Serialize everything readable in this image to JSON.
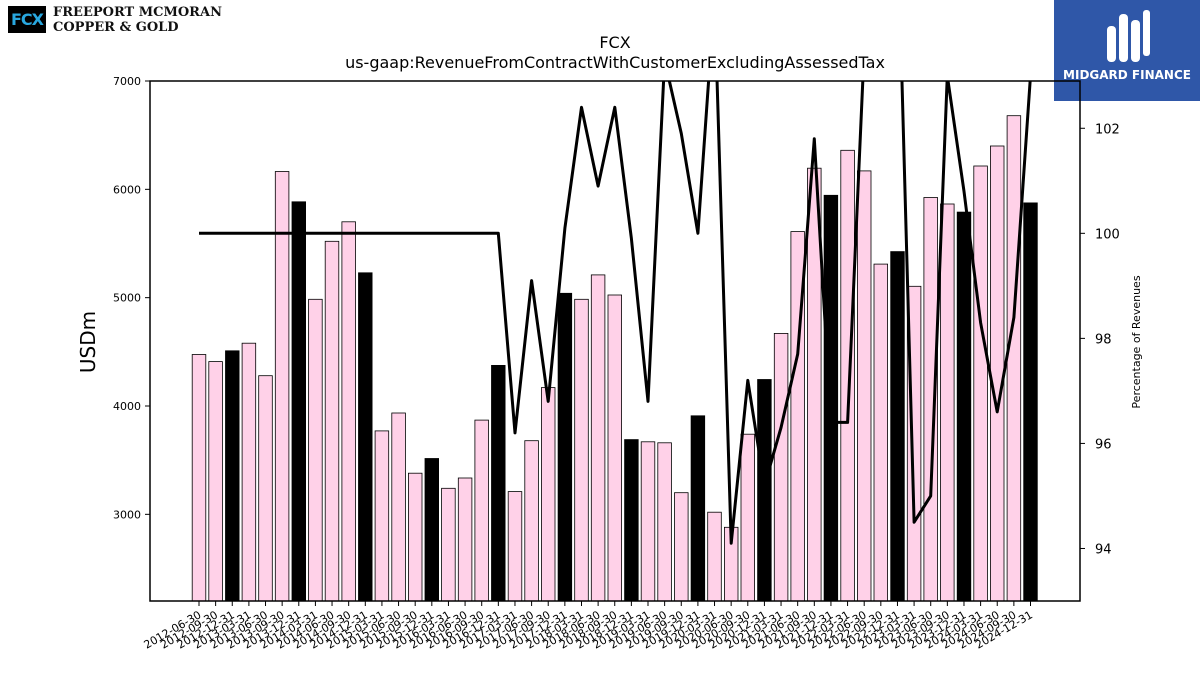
{
  "logos": {
    "company_mark": "FCX",
    "company_line1": "FREEPORT MCMORAN",
    "company_line2": "COPPER & GOLD",
    "publisher": "MIDGARD FINANCE"
  },
  "chart_data": {
    "type": "bar",
    "title": "FCX",
    "subtitle": "us-gaap:RevenueFromContractWithCustomerExcludingAssessedTax",
    "ylabel": "USDm",
    "y2label": "Percentage of Revenues",
    "ylim": [
      2200,
      7000
    ],
    "y2lim": [
      93,
      102.9
    ],
    "yticks": [
      3000,
      4000,
      5000,
      6000,
      7000
    ],
    "y2ticks": [
      94,
      96,
      98,
      100,
      102
    ],
    "grid": false,
    "colors": {
      "quarter_bar": "#ffd1e8",
      "annual_bar": "#000000",
      "line": "#000000"
    },
    "categories": [
      "2012-06-30",
      "2012-09-30",
      "2012-12-31",
      "2013-03-31",
      "2013-06-30",
      "2013-09-30",
      "2013-12-31",
      "2014-03-31",
      "2014-06-30",
      "2014-09-30",
      "2014-12-31",
      "2015-03-31",
      "2015-06-30",
      "2015-09-30",
      "2015-12-31",
      "2016-03-31",
      "2016-06-30",
      "2016-09-30",
      "2016-12-31",
      "2017-03-31",
      "2017-06-30",
      "2017-09-30",
      "2017-12-31",
      "2018-03-31",
      "2018-06-30",
      "2018-09-30",
      "2018-12-31",
      "2019-03-31",
      "2019-06-30",
      "2019-09-30",
      "2019-12-31",
      "2020-03-31",
      "2020-06-30",
      "2020-09-30",
      "2020-12-31",
      "2021-03-31",
      "2021-06-30",
      "2021-09-30",
      "2021-12-31",
      "2022-03-31",
      "2022-06-30",
      "2022-09-30",
      "2022-12-31",
      "2023-03-31",
      "2023-06-30",
      "2023-09-30",
      "2023-12-31",
      "2024-03-31",
      "2024-06-30",
      "2024-09-30",
      "2024-12-31"
    ],
    "series": [
      {
        "kind": "bar",
        "axis": "left",
        "values": [
          4475,
          4410,
          4510,
          4580,
          4280,
          6165,
          5885,
          4985,
          5520,
          5700,
          5230,
          3770,
          3935,
          3380,
          3515,
          3240,
          3335,
          3870,
          4375,
          3210,
          3680,
          4170,
          5040,
          4985,
          5210,
          5025,
          3690,
          3670,
          3660,
          3200,
          3910,
          3020,
          2880,
          3740,
          4245,
          4670,
          5610,
          6195,
          5945,
          6360,
          6170,
          5310,
          5425,
          5105,
          5925,
          5865,
          5790,
          6215,
          6400,
          6680,
          5875
        ],
        "annual": [
          false,
          false,
          true,
          false,
          false,
          false,
          true,
          false,
          false,
          false,
          true,
          false,
          false,
          false,
          true,
          false,
          false,
          false,
          true,
          false,
          false,
          false,
          true,
          false,
          false,
          false,
          true,
          false,
          false,
          false,
          true,
          false,
          false,
          false,
          true,
          false,
          false,
          false,
          true,
          false,
          false,
          false,
          true,
          false,
          false,
          false,
          true,
          false,
          false,
          false,
          true
        ]
      },
      {
        "kind": "line",
        "axis": "right",
        "values": [
          100,
          100,
          100,
          100,
          100,
          100,
          100,
          100,
          100,
          100,
          100,
          100,
          100,
          100,
          100,
          100,
          100,
          100,
          100,
          96.2,
          99.1,
          96.8,
          100.1,
          102.4,
          100.9,
          102.4,
          99.9,
          96.8,
          103.3,
          101.9,
          100.0,
          104.5,
          94.1,
          97.2,
          95.2,
          96.3,
          97.7,
          101.8,
          96.4,
          96.4,
          103.5,
          104.5,
          106.0,
          94.5,
          95.0,
          103.0,
          100.8,
          98.3,
          96.6,
          98.4,
          103.0
        ]
      }
    ]
  }
}
